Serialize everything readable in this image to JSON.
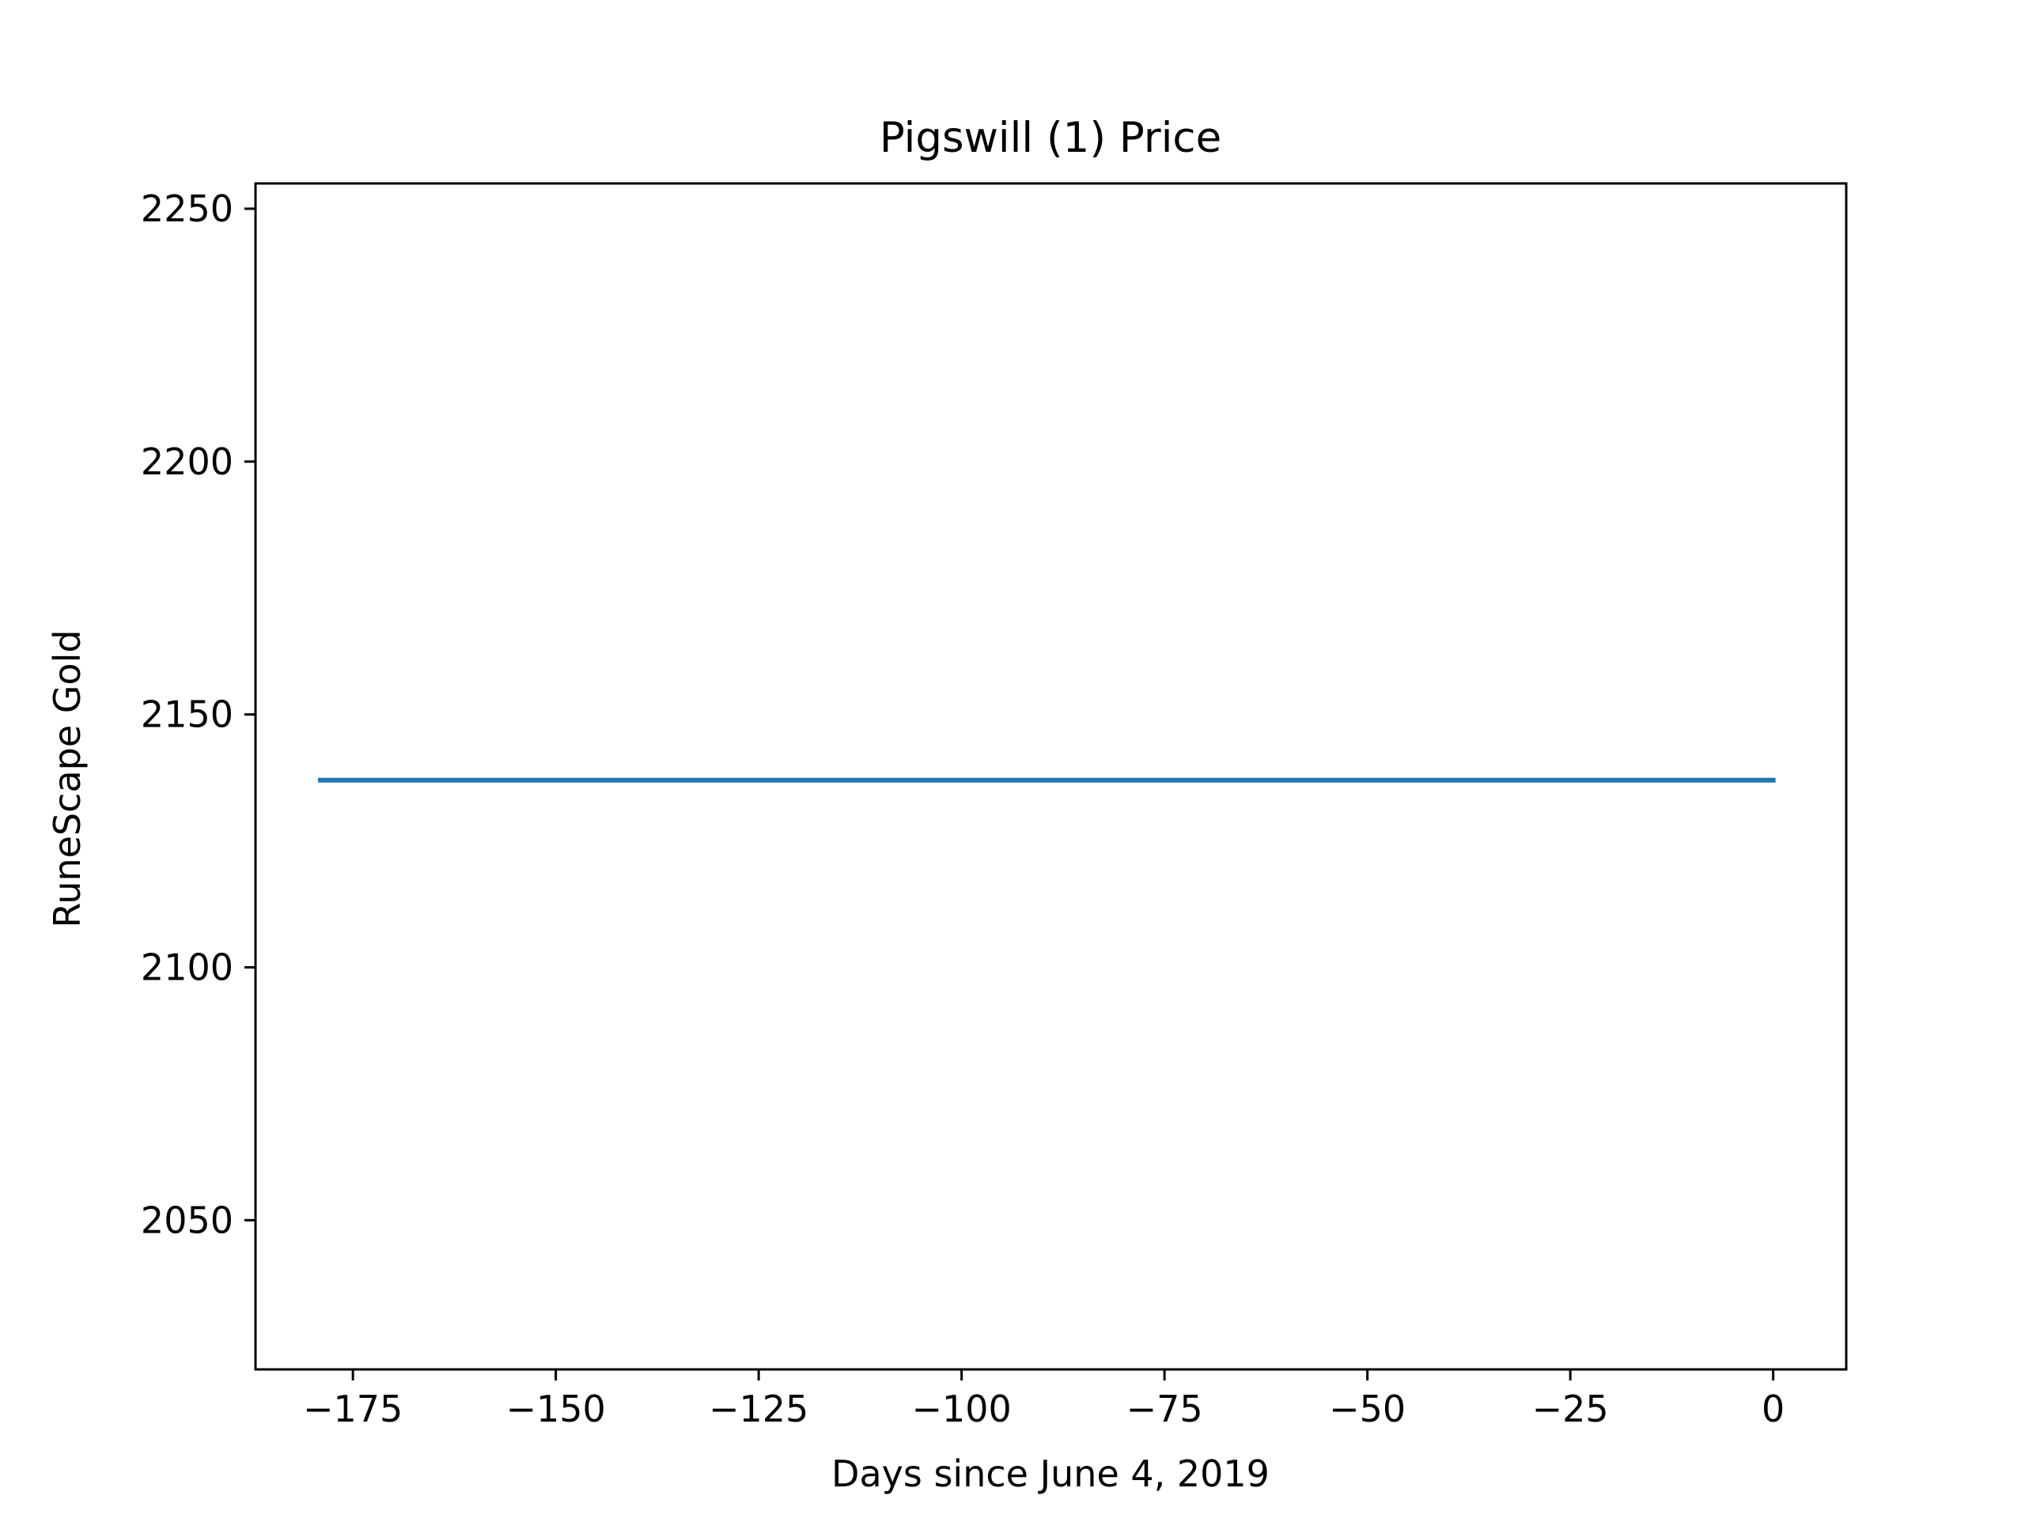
{
  "chart_data": {
    "type": "line",
    "title": "Pigswill (1) Price",
    "xlabel": "Days since June 4, 2019",
    "ylabel": "RuneScape Gold",
    "xlim": [
      -187,
      9
    ],
    "ylim": [
      2020.5,
      2255
    ],
    "x_ticks": [
      -175,
      -150,
      -125,
      -100,
      -75,
      -50,
      -25,
      0
    ],
    "y_ticks": [
      2050,
      2100,
      2150,
      2200,
      2250
    ],
    "x_tick_labels": [
      "−175",
      "−150",
      "−125",
      "−100",
      "−75",
      "−50",
      "−25",
      "0"
    ],
    "y_tick_labels": [
      "2050",
      "2100",
      "2150",
      "2200",
      "2250"
    ],
    "grid": false,
    "series": [
      {
        "color": "#1f77b4",
        "x": [
          -179,
          0
        ],
        "y": [
          2137,
          2137
        ]
      }
    ]
  }
}
